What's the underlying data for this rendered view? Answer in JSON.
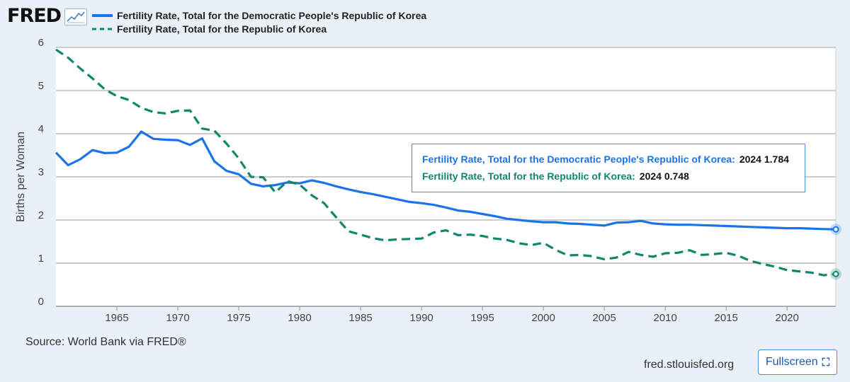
{
  "header": {
    "logo_text": "FRED",
    "logo_mark_icon": "line-chart-icon"
  },
  "chart_data": {
    "type": "line",
    "title": "",
    "xlabel": "",
    "ylabel": "Births per Woman",
    "xlim": [
      1960,
      2024
    ],
    "ylim": [
      0,
      6
    ],
    "yticks": [
      "0",
      "1",
      "2",
      "3",
      "4",
      "5",
      "6"
    ],
    "xticks": [
      "1965",
      "1970",
      "1975",
      "1980",
      "1985",
      "1990",
      "1995",
      "2000",
      "2005",
      "2010",
      "2015",
      "2020"
    ],
    "grid": true,
    "legend_position": "top",
    "series": [
      {
        "name": "Fertility Rate, Total for the Democratic People's Republic of Korea",
        "color": "#1a73e8",
        "style": "solid",
        "x": [
          1960,
          1961,
          1962,
          1963,
          1964,
          1965,
          1966,
          1967,
          1968,
          1969,
          1970,
          1971,
          1972,
          1973,
          1974,
          1975,
          1976,
          1977,
          1978,
          1979,
          1980,
          1981,
          1982,
          1983,
          1984,
          1985,
          1986,
          1987,
          1988,
          1989,
          1990,
          1991,
          1992,
          1993,
          1994,
          1995,
          1996,
          1997,
          1998,
          1999,
          2000,
          2001,
          2002,
          2003,
          2004,
          2005,
          2006,
          2007,
          2008,
          2009,
          2010,
          2011,
          2012,
          2013,
          2014,
          2015,
          2016,
          2017,
          2018,
          2019,
          2020,
          2021,
          2022,
          2023,
          2024
        ],
        "y": [
          3.56,
          3.27,
          3.41,
          3.62,
          3.55,
          3.56,
          3.7,
          4.05,
          3.88,
          3.86,
          3.85,
          3.74,
          3.89,
          3.36,
          3.14,
          3.06,
          2.84,
          2.78,
          2.81,
          2.87,
          2.85,
          2.92,
          2.86,
          2.78,
          2.71,
          2.65,
          2.6,
          2.54,
          2.48,
          2.42,
          2.39,
          2.35,
          2.29,
          2.22,
          2.19,
          2.14,
          2.09,
          2.03,
          2.0,
          1.97,
          1.95,
          1.95,
          1.92,
          1.91,
          1.89,
          1.87,
          1.94,
          1.95,
          1.98,
          1.92,
          1.9,
          1.89,
          1.89,
          1.88,
          1.87,
          1.86,
          1.85,
          1.84,
          1.83,
          1.82,
          1.81,
          1.81,
          1.8,
          1.79,
          1.784
        ]
      },
      {
        "name": "Fertility Rate, Total for the Republic of Korea",
        "color": "#10866f",
        "style": "dashed",
        "x": [
          1960,
          1961,
          1962,
          1963,
          1964,
          1965,
          1966,
          1967,
          1968,
          1969,
          1970,
          1971,
          1972,
          1973,
          1974,
          1975,
          1976,
          1977,
          1978,
          1979,
          1980,
          1981,
          1982,
          1983,
          1984,
          1985,
          1986,
          1987,
          1988,
          1989,
          1990,
          1991,
          1992,
          1993,
          1994,
          1995,
          1996,
          1997,
          1998,
          1999,
          2000,
          2001,
          2002,
          2003,
          2004,
          2005,
          2006,
          2007,
          2008,
          2009,
          2010,
          2011,
          2012,
          2013,
          2014,
          2015,
          2016,
          2017,
          2018,
          2019,
          2020,
          2021,
          2022,
          2023,
          2024
        ],
        "y": [
          5.95,
          5.76,
          5.51,
          5.28,
          5.03,
          4.87,
          4.78,
          4.6,
          4.5,
          4.47,
          4.53,
          4.54,
          4.12,
          4.07,
          3.77,
          3.43,
          3.0,
          2.99,
          2.64,
          2.9,
          2.82,
          2.57,
          2.39,
          2.06,
          1.74,
          1.66,
          1.58,
          1.53,
          1.55,
          1.56,
          1.57,
          1.71,
          1.76,
          1.65,
          1.66,
          1.63,
          1.57,
          1.54,
          1.46,
          1.42,
          1.47,
          1.31,
          1.18,
          1.19,
          1.16,
          1.09,
          1.13,
          1.26,
          1.19,
          1.15,
          1.23,
          1.24,
          1.3,
          1.19,
          1.21,
          1.24,
          1.17,
          1.05,
          0.98,
          0.92,
          0.84,
          0.81,
          0.78,
          0.72,
          0.748
        ]
      }
    ]
  },
  "tooltip": {
    "line1_label": "Fertility Rate, Total for the Democratic People's Republic of Korea:",
    "line1_value": "2024 1.784",
    "line2_label": "Fertility Rate, Total for the Republic of Korea:",
    "line2_value": "2024 0.748"
  },
  "footer": {
    "source": "Source: World Bank via FRED®",
    "site": "fred.stlouisfed.org",
    "fullscreen_label": "Fullscreen",
    "fullscreen_icon": "expand-icon"
  }
}
